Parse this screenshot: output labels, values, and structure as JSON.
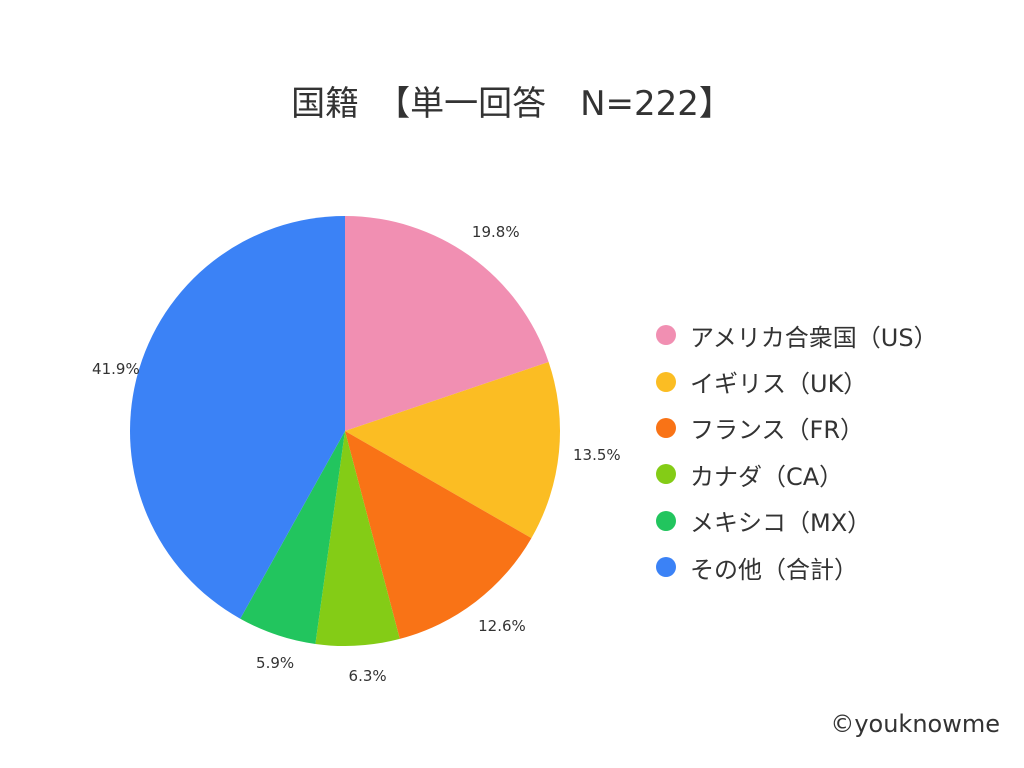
{
  "title": "国籍　【単一回答　N=222】",
  "credit": "©youknowme",
  "chart_data": {
    "type": "pie",
    "title": "国籍　【単一回答　N=222】",
    "categories": [
      "アメリカ合衆国（US）",
      "イギリス（UK）",
      "フランス（FR）",
      "カナダ（CA）",
      "メキシコ（MX）",
      "その他（合計）"
    ],
    "values": [
      19.8,
      13.5,
      12.6,
      6.3,
      5.9,
      41.9
    ],
    "labels": [
      "19.8%",
      "13.5%",
      "12.6%",
      "6.3%",
      "5.9%",
      "41.9%"
    ],
    "colors": [
      "#f18fb2",
      "#fbbd23",
      "#f97316",
      "#84cc16",
      "#22c55e",
      "#3b82f6"
    ],
    "legend_position": "right",
    "start_angle": "12 o'clock",
    "direction": "clockwise"
  },
  "legend": {
    "items": [
      {
        "label": "アメリカ合衆国（US）",
        "color": "#f18fb2"
      },
      {
        "label": "イギリス（UK）",
        "color": "#fbbd23"
      },
      {
        "label": "フランス（FR）",
        "color": "#f97316"
      },
      {
        "label": "カナダ（CA）",
        "color": "#84cc16"
      },
      {
        "label": "メキシコ（MX）",
        "color": "#22c55e"
      },
      {
        "label": "その他（合計）",
        "color": "#3b82f6"
      }
    ]
  }
}
